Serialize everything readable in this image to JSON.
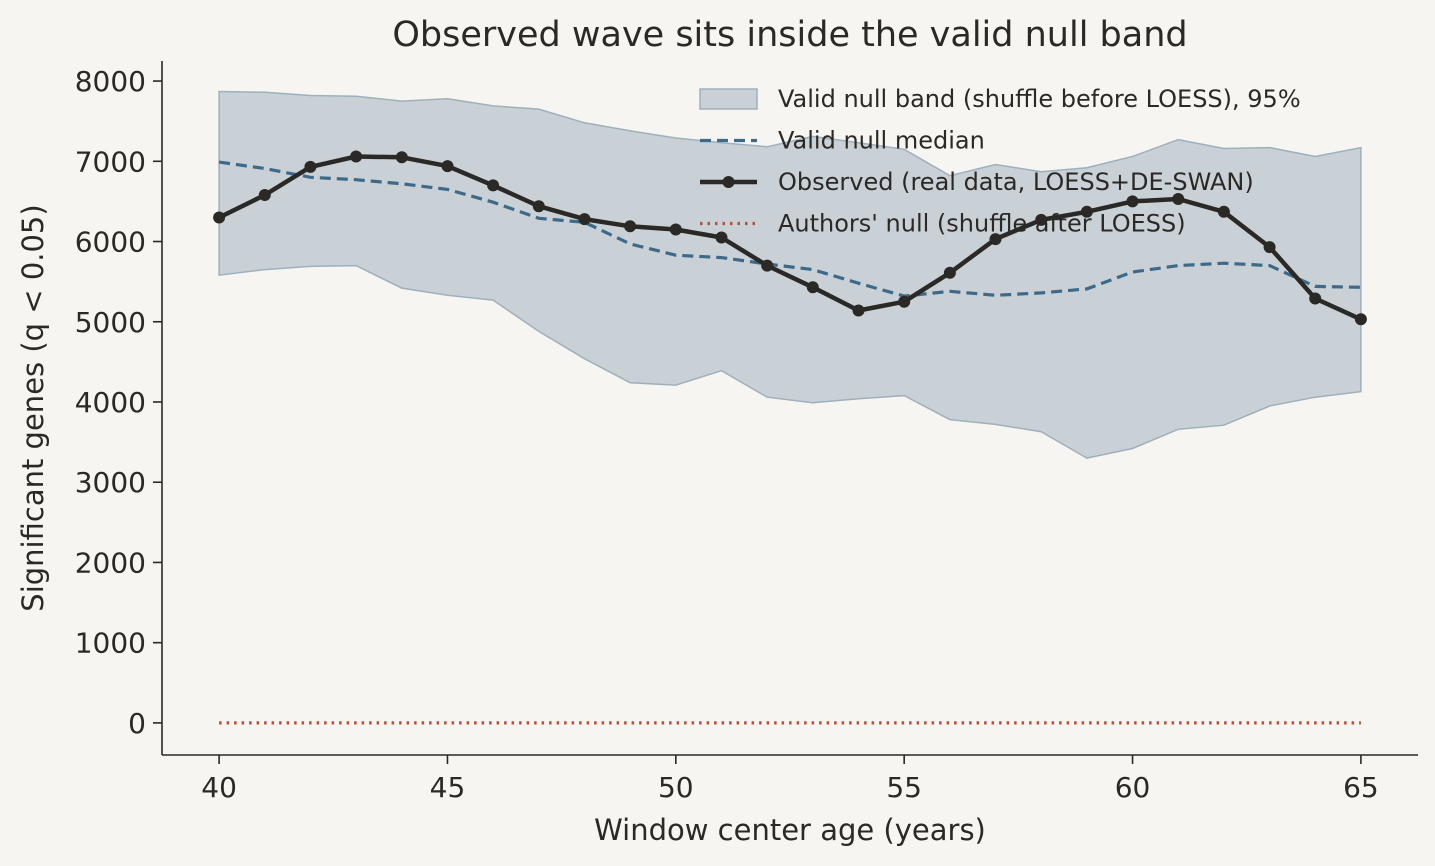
{
  "chart_data": {
    "type": "line",
    "title": "Observed wave sits inside the valid null band",
    "xlabel": "Window center age (years)",
    "ylabel": "Significant genes (q < 0.05)",
    "xlim": [
      38.75,
      66.25
    ],
    "ylim": [
      -400,
      8250
    ],
    "xticks": [
      40,
      45,
      50,
      55,
      60,
      65
    ],
    "yticks": [
      0,
      1000,
      2000,
      3000,
      4000,
      5000,
      6000,
      7000,
      8000
    ],
    "grid": false,
    "legend_position": "top-right",
    "x": [
      40,
      41,
      42,
      43,
      44,
      45,
      46,
      47,
      48,
      49,
      50,
      51,
      52,
      53,
      54,
      55,
      56,
      57,
      58,
      59,
      60,
      61,
      62,
      63,
      64,
      65
    ],
    "series": [
      {
        "name": "Valid null band (shuffle before LOESS), 95%",
        "kind": "band",
        "color": "#b7c3cc",
        "lower": [
          5580,
          5650,
          5690,
          5700,
          5420,
          5330,
          5270,
          4880,
          4540,
          4240,
          4210,
          4390,
          4060,
          3990,
          4040,
          4080,
          3780,
          3720,
          3630,
          3300,
          3420,
          3660,
          3710,
          3950,
          4060,
          4130
        ],
        "upper": [
          7870,
          7860,
          7820,
          7810,
          7750,
          7780,
          7690,
          7650,
          7480,
          7380,
          7290,
          7230,
          7180,
          7310,
          7230,
          7150,
          6820,
          6960,
          6870,
          6920,
          7060,
          7270,
          7160,
          7170,
          7060,
          7170
        ]
      },
      {
        "name": "Valid null median",
        "kind": "dashed",
        "color": "#3e6a8a",
        "values": [
          6990,
          6910,
          6800,
          6770,
          6720,
          6650,
          6490,
          6290,
          6240,
          5970,
          5830,
          5800,
          5720,
          5650,
          5480,
          5320,
          5380,
          5330,
          5360,
          5410,
          5620,
          5700,
          5730,
          5700,
          5440,
          5430
        ]
      },
      {
        "name": "Observed (real data, LOESS+DE-SWAN)",
        "kind": "line-marker",
        "color": "#2b2926",
        "values": [
          6300,
          6580,
          6930,
          7060,
          7050,
          6940,
          6700,
          6440,
          6280,
          6190,
          6150,
          6050,
          5700,
          5430,
          5140,
          5250,
          5610,
          6030,
          6270,
          6370,
          6500,
          6530,
          6370,
          5930,
          5290,
          5030
        ]
      },
      {
        "name": "Authors' null (shuffle after LOESS)",
        "kind": "dotted",
        "color": "#b8503a",
        "values": [
          0,
          0,
          0,
          0,
          0,
          0,
          0,
          0,
          0,
          0,
          0,
          0,
          0,
          0,
          0,
          0,
          0,
          0,
          0,
          0,
          0,
          0,
          0,
          0,
          0,
          0
        ]
      }
    ]
  }
}
